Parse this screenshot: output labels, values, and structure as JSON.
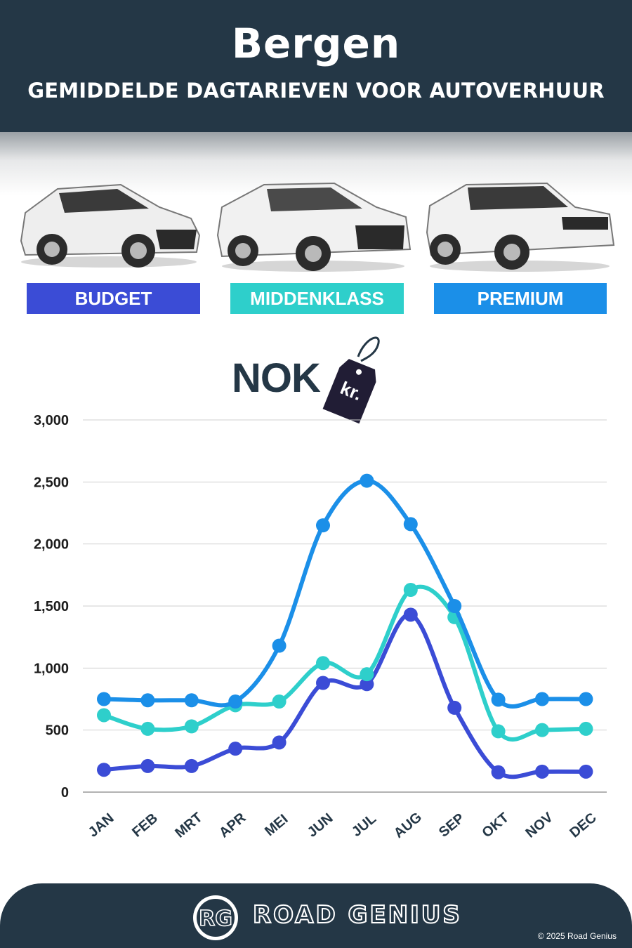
{
  "header": {
    "city": "Bergen",
    "subtitle": "GEMIDDELDE DAGTARIEVEN VOOR AUTOVERHUUR"
  },
  "categories": [
    {
      "label": "BUDGET",
      "color": "#3b4cd6"
    },
    {
      "label": "MIDDENKLASS",
      "color": "#2ecfcb"
    },
    {
      "label": "PREMIUM",
      "color": "#1b8fe8"
    }
  ],
  "currency": {
    "code": "NOK",
    "tag_text": "kr."
  },
  "chart_data": {
    "type": "line",
    "categories": [
      "JAN",
      "FEB",
      "MRT",
      "APR",
      "MEI",
      "JUN",
      "JUL",
      "AUG",
      "SEP",
      "OKT",
      "NOV",
      "DEC"
    ],
    "ylim": [
      0,
      3000
    ],
    "yticks": [
      0,
      500,
      1000,
      1500,
      2000,
      2500,
      3000
    ],
    "ytick_labels": [
      "0",
      "500",
      "1,000",
      "1,500",
      "2,000",
      "2,500",
      "3,000"
    ],
    "grid": true,
    "series": [
      {
        "name": "BUDGET",
        "color": "#3b4cd6",
        "values": [
          180,
          210,
          210,
          350,
          400,
          880,
          870,
          1430,
          680,
          160,
          165,
          165
        ]
      },
      {
        "name": "MIDDENKLASS",
        "color": "#2ecfcb",
        "values": [
          620,
          510,
          530,
          700,
          730,
          1040,
          950,
          1630,
          1410,
          490,
          500,
          510
        ]
      },
      {
        "name": "PREMIUM",
        "color": "#1b8fe8",
        "values": [
          750,
          740,
          740,
          730,
          1180,
          2150,
          2510,
          2160,
          1500,
          745,
          750,
          750
        ]
      }
    ]
  },
  "footer": {
    "logo_text": "RG",
    "brand": "ROAD GENIUS",
    "copyright": "© 2025 Road Genius"
  }
}
